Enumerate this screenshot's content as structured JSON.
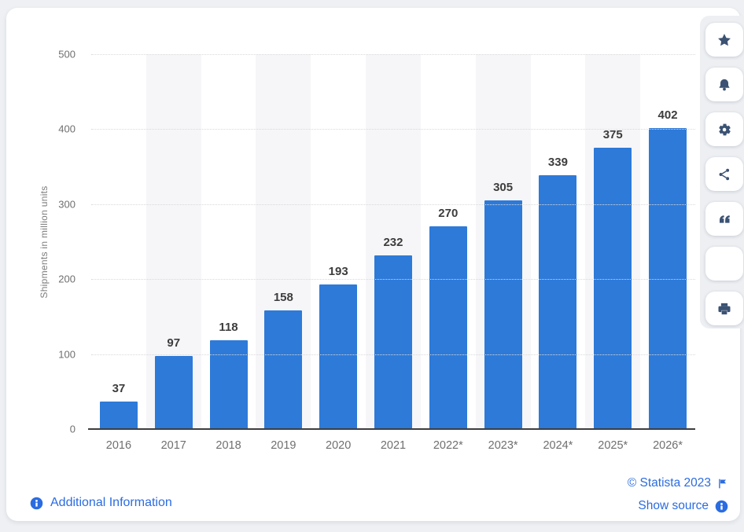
{
  "chart_data": {
    "type": "bar",
    "categories": [
      "2016",
      "2017",
      "2018",
      "2019",
      "2020",
      "2021",
      "2022*",
      "2023*",
      "2024*",
      "2025*",
      "2026*"
    ],
    "values": [
      37,
      97,
      118,
      158,
      193,
      232,
      270,
      305,
      339,
      375,
      402
    ],
    "title": "",
    "xlabel": "",
    "ylabel": "Shipments in million units",
    "ylim": [
      0,
      500
    ],
    "yticks": [
      0,
      100,
      200,
      300,
      400,
      500
    ],
    "grid": "horizontal-dotted",
    "legend": "none",
    "bar_color": "#2d7ad9"
  },
  "sidebar": {
    "buttons": [
      {
        "name": "favorite-button",
        "icon": "star-icon"
      },
      {
        "name": "notification-button",
        "icon": "bell-icon"
      },
      {
        "name": "settings-button",
        "icon": "gear-icon"
      },
      {
        "name": "share-button",
        "icon": "share-icon"
      },
      {
        "name": "citation-button",
        "icon": "quote-icon"
      },
      {
        "name": "blank-button",
        "icon": "blank"
      },
      {
        "name": "print-button",
        "icon": "printer-icon"
      }
    ]
  },
  "footer": {
    "additional_info_label": "Additional Information",
    "copyright_label": "© Statista 2023",
    "show_source_label": "Show source"
  },
  "colors": {
    "bar": "#2d7ad9",
    "link": "#2b6ce0",
    "icon_navy": "#3b5273",
    "stripe": "#f6f6f8",
    "gridline": "#d8d9db",
    "axis": "#3e3e3e",
    "page_background": "#eef0f3",
    "card_background": "#ffffff",
    "rail_background": "#edeff2",
    "value_label": "#3d3d3d",
    "tick_label": "#6f6f6f"
  }
}
